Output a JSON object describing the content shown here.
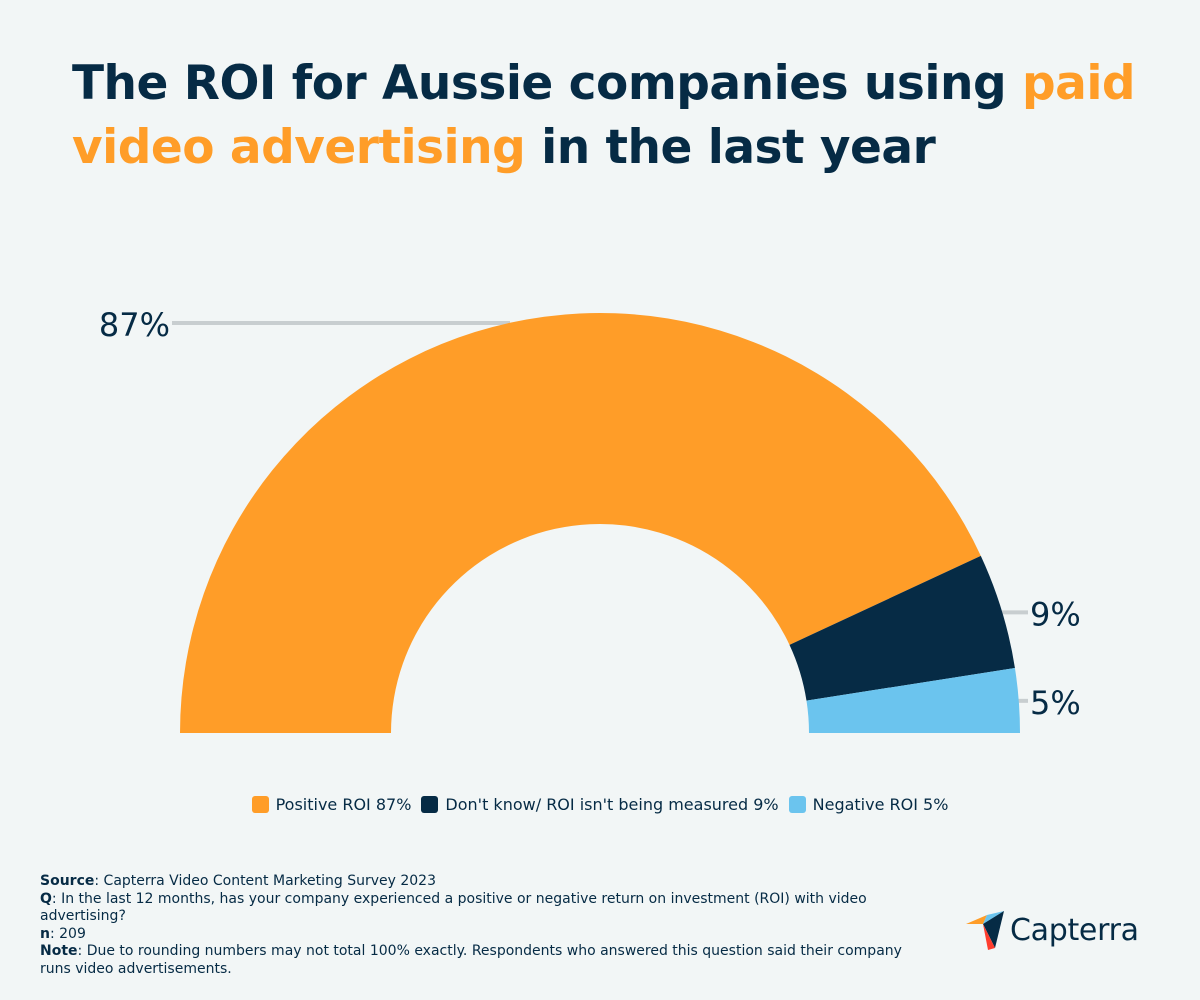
{
  "title": {
    "part1": "The ROI for Aussie companies using ",
    "highlight": "paid video advertising",
    "part2": " in the last year"
  },
  "chart_data": {
    "type": "pie",
    "variant": "semi-donut",
    "slices": [
      {
        "label": "Positive ROI",
        "value": 87,
        "display": "87%",
        "legend": "Positive ROI 87%",
        "color": "#ff9d28"
      },
      {
        "label": "Don't know/ ROI isn't being measured",
        "value": 9,
        "display": "9%",
        "legend": "Don't know/ ROI isn't being measured 9%",
        "color": "#062b45"
      },
      {
        "label": "Negative ROI",
        "value": 5,
        "display": "5%",
        "legend": "Negative ROI 5%",
        "color": "#6bc4ee"
      }
    ],
    "legend_position": "bottom"
  },
  "footnote": {
    "source_label": "Source",
    "source_text": ": Capterra Video Content Marketing Survey 2023",
    "q_label": "Q",
    "q_text": ": In the last 12 months, has your company experienced a positive or negative return on investment (ROI) with video advertising?",
    "n_label": "n",
    "n_text": ": 209",
    "note_label": "Note",
    "note_text": ": Due to rounding numbers may not total 100% exactly. Respondents who answered this question said their company runs video advertisements."
  },
  "logo": {
    "text": "Capterra",
    "colors": [
      "#ff9d28",
      "#6bc4ee",
      "#062b45",
      "#ff3d2e"
    ]
  }
}
